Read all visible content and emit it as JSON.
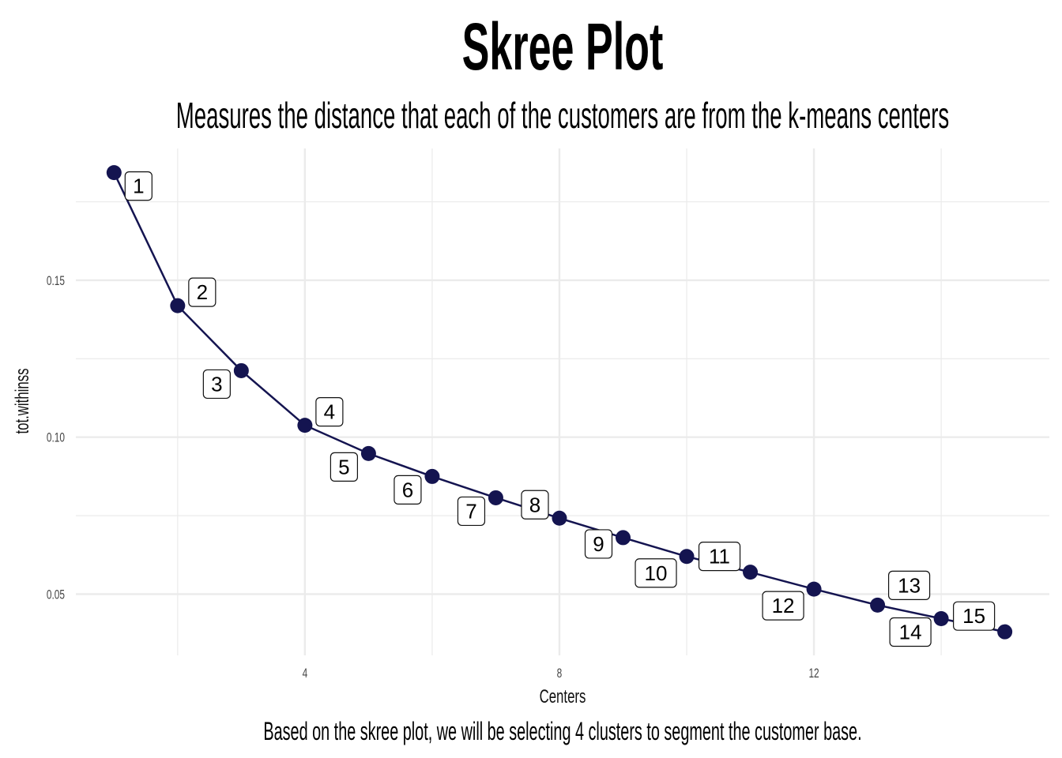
{
  "chart_data": {
    "type": "line",
    "title": "Skree Plot",
    "subtitle": "Measures the distance that each of the customers are from the k-means centers",
    "caption": "Based on the skree plot, we will be selecting 4 clusters to segment the customer base.",
    "xlabel": "Centers",
    "ylabel": "tot.withinss",
    "x": [
      1,
      2,
      3,
      4,
      5,
      6,
      7,
      8,
      9,
      10,
      11,
      12,
      13,
      14,
      15
    ],
    "series": [
      {
        "name": "",
        "values": [
          0.1843,
          0.1419,
          0.1212,
          0.1038,
          0.0948,
          0.0875,
          0.0807,
          0.0742,
          0.068,
          0.062,
          0.057,
          0.0516,
          0.0465,
          0.0422,
          0.038
        ]
      }
    ],
    "labels": [
      "1",
      "2",
      "3",
      "4",
      "5",
      "6",
      "7",
      "8",
      "9",
      "10",
      "11",
      "12",
      "13",
      "14",
      "15"
    ],
    "xlim": [
      0.4,
      15.7
    ],
    "ylim": [
      0.0305,
      0.192
    ],
    "xticks": [
      4,
      8,
      12
    ],
    "xtick_labels": [
      "4",
      "8",
      "12"
    ],
    "yticks": [
      0.05,
      0.1,
      0.15
    ],
    "ytick_labels": [
      "0.05",
      "0.10",
      "0.15"
    ],
    "grid": true,
    "legend": "none",
    "colors": {
      "line": "#141450",
      "point": "#141450",
      "grid": "#ebebeb"
    }
  }
}
